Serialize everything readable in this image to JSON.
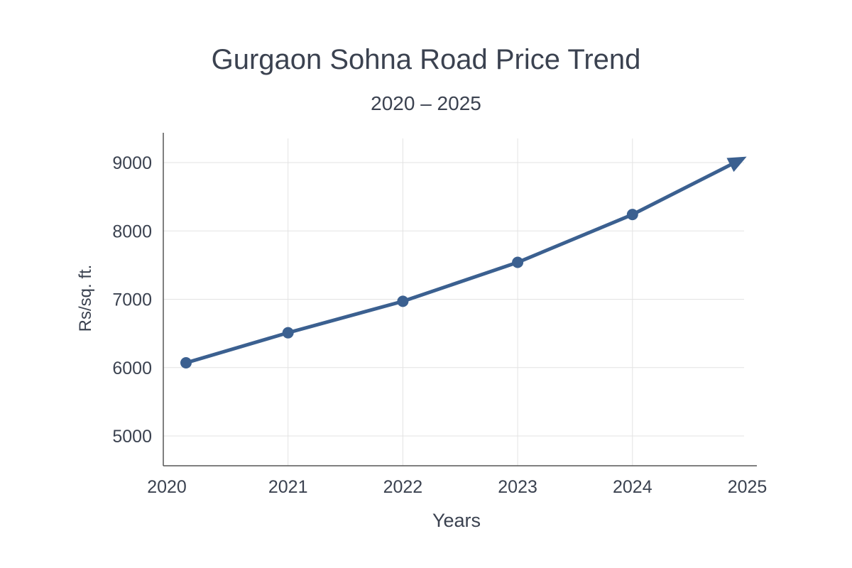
{
  "chart_data": {
    "type": "line",
    "title": "Gurgaon Sohna Road Price Trend",
    "subtitle": "2020 – 2025",
    "xlabel": "Years",
    "ylabel": "Rs/sq. ft.",
    "x_ticks": [
      "2020",
      "2021",
      "2022",
      "2023",
      "2024",
      "2025"
    ],
    "y_ticks": [
      "5000",
      "6000",
      "7000",
      "8000",
      "9000"
    ],
    "ylim": [
      4600,
      9400
    ],
    "xlim": [
      2020,
      2025
    ],
    "grid": true,
    "series": [
      {
        "x": [
          2020,
          2021,
          2022,
          2023,
          2024
        ],
        "values": [
          6070,
          6510,
          6970,
          7540,
          8240
        ],
        "trend_end": {
          "x": 2025,
          "value": 9050
        }
      }
    ],
    "colors": {
      "line": "#3b6090",
      "text": "#3b4250",
      "grid": "#e3e3e3",
      "axis": "#555555"
    }
  }
}
